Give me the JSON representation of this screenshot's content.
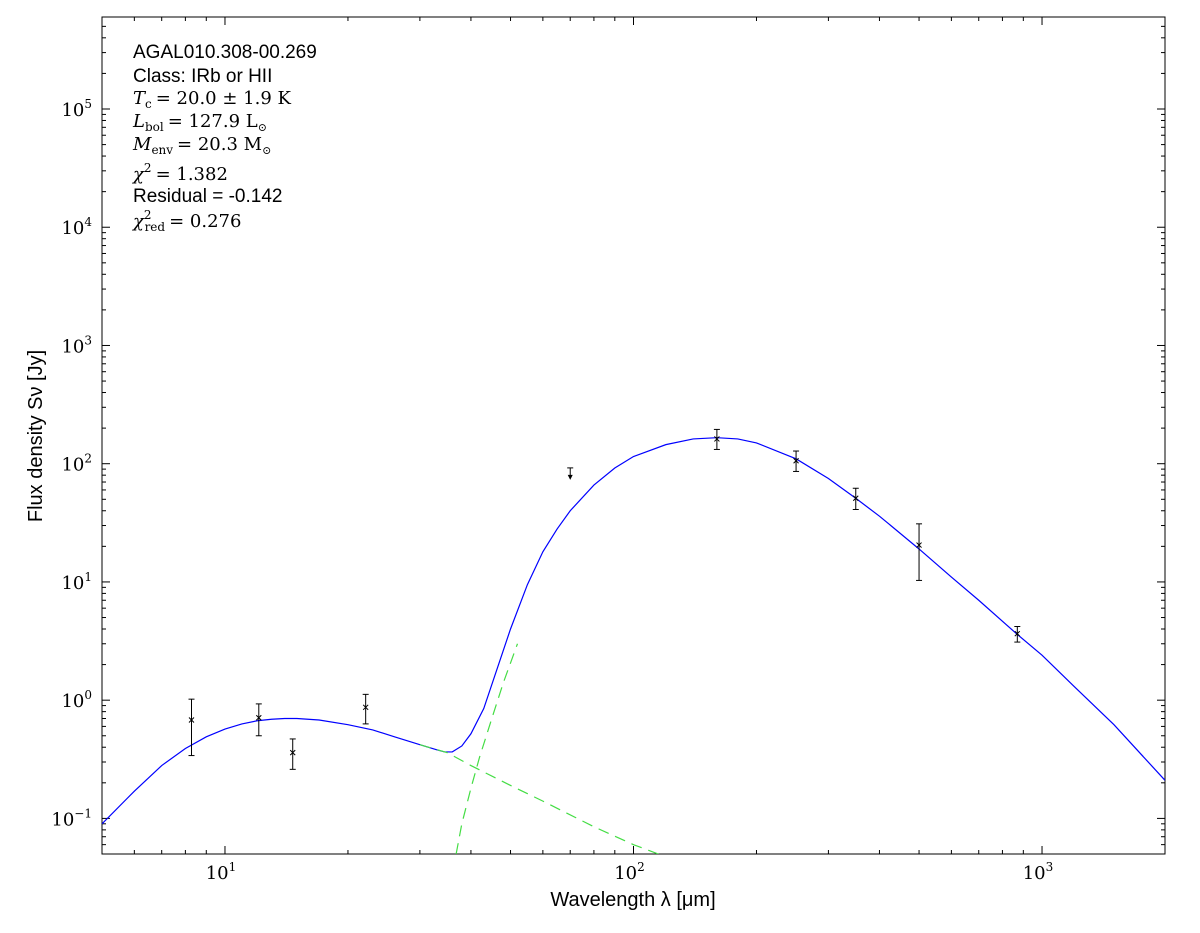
{
  "chart_data": {
    "type": "scatter",
    "xlabel": "Wavelength λ [μm]",
    "ylabel": "Flux density Sν [Jy]",
    "x_scale": "log",
    "y_scale": "log",
    "xlim": [
      5,
      2000
    ],
    "ylim": [
      0.05,
      600000
    ],
    "grid": false,
    "x_ticks": [
      {
        "value": 10,
        "base": "10",
        "exp": "1"
      },
      {
        "value": 100,
        "base": "10",
        "exp": "2"
      },
      {
        "value": 1000,
        "base": "10",
        "exp": "3"
      }
    ],
    "y_ticks": [
      {
        "value": 0.1,
        "base": "10",
        "exp": "−1"
      },
      {
        "value": 1,
        "base": "10",
        "exp": "0"
      },
      {
        "value": 10,
        "base": "10",
        "exp": "1"
      },
      {
        "value": 100,
        "base": "10",
        "exp": "2"
      },
      {
        "value": 1000,
        "base": "10",
        "exp": "3"
      },
      {
        "value": 10000,
        "base": "10",
        "exp": "4"
      },
      {
        "value": 100000,
        "base": "10",
        "exp": "5"
      }
    ],
    "annotations": {
      "source": "AGAL010.308-00.269",
      "class": "Class: IRb or HII",
      "tc_text": "= 20.0 ± 1.9 K",
      "lbol_text": "= 127.9 L",
      "menv_text": "= 20.3 M",
      "chi2_text": "= 1.382",
      "residual": "Residual = -0.142",
      "chi2red_text": "= 0.276"
    },
    "observations": [
      {
        "x": 8.28,
        "y": 0.68,
        "ylow": 0.34,
        "yhigh": 1.02
      },
      {
        "x": 12.1,
        "y": 0.71,
        "ylow": 0.5,
        "yhigh": 0.93
      },
      {
        "x": 14.65,
        "y": 0.36,
        "ylow": 0.26,
        "yhigh": 0.47
      },
      {
        "x": 22.1,
        "y": 0.87,
        "ylow": 0.63,
        "yhigh": 1.12
      },
      {
        "x": 160,
        "y": 162,
        "ylow": 132,
        "yhigh": 195
      },
      {
        "x": 250,
        "y": 106,
        "ylow": 86,
        "yhigh": 128
      },
      {
        "x": 350,
        "y": 51,
        "ylow": 41,
        "yhigh": 62
      },
      {
        "x": 500,
        "y": 20.5,
        "ylow": 10.3,
        "yhigh": 31
      },
      {
        "x": 870,
        "y": 3.65,
        "ylow": 3.1,
        "yhigh": 4.2
      }
    ],
    "upper_limits": [
      {
        "x": 70,
        "y": 82
      }
    ],
    "series": [
      {
        "kind": "model-total",
        "color": "#0000ff",
        "style": "solid",
        "points": [
          [
            5,
            0.09
          ],
          [
            6,
            0.17
          ],
          [
            7,
            0.28
          ],
          [
            8,
            0.39
          ],
          [
            9,
            0.49
          ],
          [
            10,
            0.57
          ],
          [
            11,
            0.63
          ],
          [
            12,
            0.67
          ],
          [
            13,
            0.69
          ],
          [
            14,
            0.7
          ],
          [
            15,
            0.7
          ],
          [
            17,
            0.68
          ],
          [
            20,
            0.62
          ],
          [
            23,
            0.56
          ],
          [
            26,
            0.49
          ],
          [
            30,
            0.42
          ],
          [
            33,
            0.38
          ],
          [
            34.5,
            0.365
          ],
          [
            36,
            0.365
          ],
          [
            38,
            0.41
          ],
          [
            40,
            0.52
          ],
          [
            43,
            0.85
          ],
          [
            46,
            1.7
          ],
          [
            50,
            4.0
          ],
          [
            55,
            9.5
          ],
          [
            60,
            18
          ],
          [
            65,
            28
          ],
          [
            70,
            40
          ],
          [
            80,
            66
          ],
          [
            90,
            92
          ],
          [
            100,
            115
          ],
          [
            120,
            145
          ],
          [
            140,
            162
          ],
          [
            160,
            166
          ],
          [
            180,
            162
          ],
          [
            200,
            150
          ],
          [
            250,
            110
          ],
          [
            300,
            75
          ],
          [
            350,
            51
          ],
          [
            400,
            36
          ],
          [
            500,
            19
          ],
          [
            600,
            11
          ],
          [
            700,
            7
          ],
          [
            870,
            3.6
          ],
          [
            1000,
            2.4
          ],
          [
            1200,
            1.3
          ],
          [
            1500,
            0.62
          ],
          [
            2000,
            0.21
          ]
        ]
      },
      {
        "kind": "component-warm",
        "color": "#44dd44",
        "style": "dashed",
        "points": [
          [
            30,
            0.42
          ],
          [
            35,
            0.36
          ],
          [
            40,
            0.28
          ],
          [
            50,
            0.19
          ],
          [
            60,
            0.14
          ],
          [
            80,
            0.085
          ],
          [
            100,
            0.06
          ],
          [
            115,
            0.05
          ]
        ]
      },
      {
        "kind": "component-cold",
        "color": "#44dd44",
        "style": "dashed",
        "points": [
          [
            36.8,
            0.05
          ],
          [
            38,
            0.09
          ],
          [
            40,
            0.18
          ],
          [
            42,
            0.33
          ],
          [
            45,
            0.7
          ],
          [
            48,
            1.4
          ],
          [
            52,
            3.0
          ]
        ]
      }
    ]
  }
}
